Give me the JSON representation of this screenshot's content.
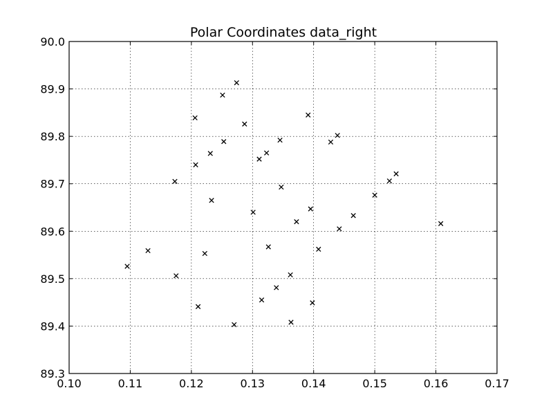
{
  "chart_data": {
    "type": "scatter",
    "title": "Polar Coordinates data_right",
    "xlabel": "",
    "ylabel": "",
    "xlim": [
      0.1,
      0.17
    ],
    "ylim": [
      89.3,
      90.0
    ],
    "grid": true,
    "marker": "x",
    "marker_color": "#000000",
    "x_ticks": [
      "0.10",
      "0.11",
      "0.12",
      "0.13",
      "0.14",
      "0.15",
      "0.16",
      "0.17"
    ],
    "y_ticks": [
      "89.3",
      "89.4",
      "89.5",
      "89.6",
      "89.7",
      "89.8",
      "89.9",
      "90.0"
    ],
    "points": [
      {
        "x": 0.1095,
        "y": 89.526
      },
      {
        "x": 0.1129,
        "y": 89.559
      },
      {
        "x": 0.1173,
        "y": 89.705
      },
      {
        "x": 0.1175,
        "y": 89.506
      },
      {
        "x": 0.1206,
        "y": 89.839
      },
      {
        "x": 0.1207,
        "y": 89.74
      },
      {
        "x": 0.1211,
        "y": 89.441
      },
      {
        "x": 0.1222,
        "y": 89.553
      },
      {
        "x": 0.1231,
        "y": 89.764
      },
      {
        "x": 0.1233,
        "y": 89.665
      },
      {
        "x": 0.1251,
        "y": 89.887
      },
      {
        "x": 0.1253,
        "y": 89.789
      },
      {
        "x": 0.127,
        "y": 89.403
      },
      {
        "x": 0.1274,
        "y": 89.913
      },
      {
        "x": 0.1287,
        "y": 89.826
      },
      {
        "x": 0.1301,
        "y": 89.64
      },
      {
        "x": 0.1311,
        "y": 89.752
      },
      {
        "x": 0.1315,
        "y": 89.455
      },
      {
        "x": 0.1323,
        "y": 89.765
      },
      {
        "x": 0.1326,
        "y": 89.567
      },
      {
        "x": 0.1339,
        "y": 89.481
      },
      {
        "x": 0.1345,
        "y": 89.792
      },
      {
        "x": 0.1347,
        "y": 89.693
      },
      {
        "x": 0.1362,
        "y": 89.508
      },
      {
        "x": 0.1363,
        "y": 89.408
      },
      {
        "x": 0.1372,
        "y": 89.62
      },
      {
        "x": 0.1391,
        "y": 89.845
      },
      {
        "x": 0.1395,
        "y": 89.647
      },
      {
        "x": 0.1398,
        "y": 89.449
      },
      {
        "x": 0.1408,
        "y": 89.562
      },
      {
        "x": 0.1428,
        "y": 89.788
      },
      {
        "x": 0.1439,
        "y": 89.802
      },
      {
        "x": 0.1442,
        "y": 89.605
      },
      {
        "x": 0.1465,
        "y": 89.633
      },
      {
        "x": 0.15,
        "y": 89.676
      },
      {
        "x": 0.1524,
        "y": 89.706
      },
      {
        "x": 0.1535,
        "y": 89.721
      },
      {
        "x": 0.1608,
        "y": 89.616
      }
    ]
  }
}
